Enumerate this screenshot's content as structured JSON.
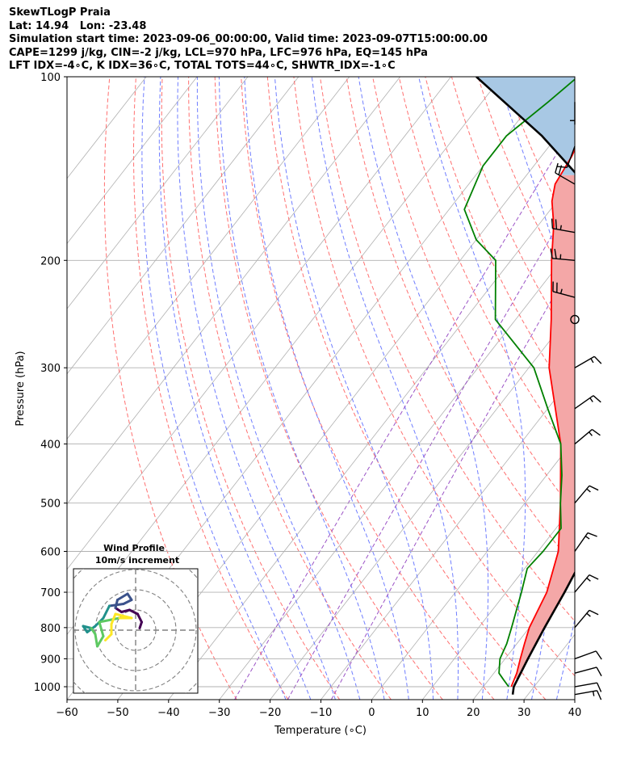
{
  "header": {
    "line1": "SkewTLogP Praia",
    "line2": "Lat: 14.94   Lon: -23.48",
    "line3": "Simulation start time: 2023-09-06_00:00:00, Valid time: 2023-09-07T15:00:00.00",
    "line4": "CAPE=1299 j/kg, CIN=-2 j/kg, LCL=970 hPa, LFC=976 hPa, EQ=145 hPa",
    "line5": "LFT IDX=-4∘C, K IDX=36∘C, TOTAL TOTS=44∘C, SHWTR_IDX=-1∘C"
  },
  "chart_data": {
    "type": "line",
    "subtype": "skew-T log-P",
    "xlabel": "Temperature (∘C)",
    "ylabel": "Pressure (hPa)",
    "xlim": [
      -60,
      40
    ],
    "ylim": [
      1050,
      100
    ],
    "y_scale": "log",
    "x_ticks": [
      -60,
      -50,
      -40,
      -30,
      -20,
      -10,
      0,
      10,
      20,
      30,
      40
    ],
    "x_tick_labels": [
      "−60",
      "−50",
      "−40",
      "−30",
      "−20",
      "−10",
      "0",
      "10",
      "20",
      "30",
      "40"
    ],
    "y_ticks": [
      1000,
      900,
      800,
      700,
      600,
      500,
      400,
      300,
      200,
      100
    ],
    "y_tick_labels": [
      "1000",
      "900",
      "800",
      "700",
      "600",
      "500",
      "400",
      "300",
      "200",
      "100"
    ],
    "grid": true,
    "series": [
      {
        "role": "temperature",
        "color": "#ff0000",
        "points": [
          [
            1000,
            25.5
          ],
          [
            950,
            24.5
          ],
          [
            900,
            23
          ],
          [
            850,
            21.5
          ],
          [
            800,
            20
          ],
          [
            700,
            18
          ],
          [
            600,
            14
          ],
          [
            500,
            7
          ],
          [
            400,
            -2
          ],
          [
            300,
            -16
          ],
          [
            250,
            -23
          ],
          [
            200,
            -32
          ],
          [
            175,
            -37
          ],
          [
            160,
            -41
          ],
          [
            150,
            -43
          ],
          [
            135,
            -44
          ],
          [
            120,
            -46
          ],
          [
            110,
            -47
          ],
          [
            100,
            -48
          ]
        ]
      },
      {
        "role": "dewpoint",
        "color": "#008000",
        "points": [
          [
            1000,
            25
          ],
          [
            975,
            23
          ],
          [
            950,
            21
          ],
          [
            900,
            19
          ],
          [
            850,
            18
          ],
          [
            800,
            16.5
          ],
          [
            700,
            13
          ],
          [
            640,
            10.5
          ],
          [
            600,
            11
          ],
          [
            550,
            11
          ],
          [
            500,
            7
          ],
          [
            450,
            3
          ],
          [
            400,
            -2
          ],
          [
            350,
            -10
          ],
          [
            300,
            -19
          ],
          [
            250,
            -34
          ],
          [
            200,
            -43
          ],
          [
            185,
            -50
          ],
          [
            165,
            -57
          ],
          [
            140,
            -60
          ],
          [
            125,
            -60
          ],
          [
            110,
            -57
          ],
          [
            100,
            -55
          ]
        ]
      },
      {
        "role": "parcel",
        "color": "#000000",
        "points": [
          [
            1030,
            27
          ],
          [
            1000,
            26
          ],
          [
            900,
            24.5
          ],
          [
            800,
            23
          ],
          [
            700,
            21.5
          ],
          [
            600,
            19.5
          ],
          [
            500,
            17
          ],
          [
            400,
            12
          ],
          [
            300,
            3
          ],
          [
            250,
            -5
          ],
          [
            200,
            -17
          ],
          [
            150,
            -37
          ],
          [
            125,
            -53
          ],
          [
            100,
            -75
          ]
        ]
      }
    ],
    "shading": [
      {
        "name": "CAPE",
        "color": "#f4a7a7",
        "between": [
          "temperature",
          "parcel"
        ],
        "p_range": [
          970,
          145
        ]
      },
      {
        "name": "CIN",
        "color": "#a8c8e4",
        "between": [
          "parcel",
          "temperature"
        ],
        "p_range": [
          145,
          100
        ]
      }
    ],
    "reference_lines": {
      "dry_adiabats_color": "#ff6060",
      "moist_adiabats_color": "#6070ff",
      "mixing_ratio_color": "#9040c0",
      "isotherm_color": "#b0b0b0"
    },
    "wind_barbs": [
      {
        "p": 1030,
        "speed_kt": 15,
        "dir_deg": 80
      },
      {
        "p": 1000,
        "speed_kt": 10,
        "dir_deg": 80
      },
      {
        "p": 950,
        "speed_kt": 10,
        "dir_deg": 75
      },
      {
        "p": 900,
        "speed_kt": 10,
        "dir_deg": 70
      },
      {
        "p": 800,
        "speed_kt": 15,
        "dir_deg": 40
      },
      {
        "p": 700,
        "speed_kt": 15,
        "dir_deg": 40
      },
      {
        "p": 600,
        "speed_kt": 15,
        "dir_deg": 35
      },
      {
        "p": 500,
        "speed_kt": 15,
        "dir_deg": 40
      },
      {
        "p": 400,
        "speed_kt": 15,
        "dir_deg": 50
      },
      {
        "p": 350,
        "speed_kt": 15,
        "dir_deg": 55
      },
      {
        "p": 300,
        "speed_kt": 15,
        "dir_deg": 60
      },
      {
        "p": 250,
        "speed_kt": 0,
        "dir_deg": 0,
        "calm": true
      },
      {
        "p": 230,
        "speed_kt": 25,
        "dir_deg": 285
      },
      {
        "p": 200,
        "speed_kt": 25,
        "dir_deg": 275
      },
      {
        "p": 180,
        "speed_kt": 25,
        "dir_deg": 280
      },
      {
        "p": 150,
        "speed_kt": 20,
        "dir_deg": 300
      },
      {
        "p": 130,
        "speed_kt": 10,
        "dir_deg": 200
      },
      {
        "p": 110,
        "speed_kt": 5,
        "dir_deg": 180
      }
    ]
  },
  "hodograph": {
    "title": "Wind Profile",
    "subtitle": "10m/s increment",
    "ring_color": "#808080",
    "path_colors": [
      "#440154",
      "#3b528b",
      "#21918c",
      "#5ec962",
      "#fde725"
    ],
    "points": [
      [
        0.2,
        0.1
      ],
      [
        0.3,
        0.4
      ],
      [
        0.1,
        0.8
      ],
      [
        -0.3,
        1.0
      ],
      [
        -0.7,
        0.9
      ],
      [
        -1.0,
        1.1
      ],
      [
        -0.9,
        1.5
      ],
      [
        -0.4,
        1.8
      ],
      [
        -0.2,
        1.5
      ],
      [
        -0.6,
        1.3
      ],
      [
        -1.3,
        1.2
      ],
      [
        -1.6,
        0.6
      ],
      [
        -2.0,
        0.2
      ],
      [
        -2.4,
        -0.1
      ],
      [
        -2.6,
        0.2
      ],
      [
        -2.2,
        0.1
      ],
      [
        -2.0,
        -0.2
      ],
      [
        -1.9,
        -0.8
      ],
      [
        -1.6,
        -0.3
      ],
      [
        -1.8,
        0.4
      ],
      [
        -0.8,
        0.6
      ],
      [
        -0.2,
        0.6
      ],
      [
        -1.0,
        0.8
      ],
      [
        -1.2,
        0.3
      ],
      [
        -1.2,
        -0.2
      ],
      [
        -1.5,
        -0.5
      ]
    ]
  }
}
